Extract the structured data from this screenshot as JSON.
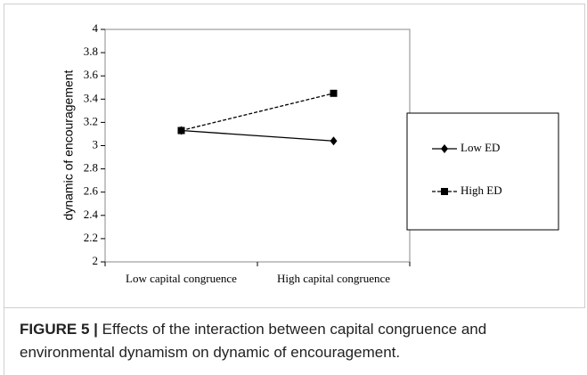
{
  "chart_data": {
    "type": "line",
    "ylabel": "dynamic of encouragement",
    "categories": [
      "Low capital congruence",
      "High capital congruence"
    ],
    "series": [
      {
        "name": "Low ED",
        "color": "#000000",
        "marker": "diamond",
        "dashed": false,
        "values": [
          3.13,
          3.04
        ]
      },
      {
        "name": "High ED",
        "color": "#000000",
        "marker": "square",
        "dashed": true,
        "values": [
          3.13,
          3.45
        ]
      }
    ],
    "ylim": [
      2,
      4
    ],
    "yticks": [
      2,
      2.2,
      2.4,
      2.6,
      2.8,
      3,
      3.2,
      3.4,
      3.6,
      3.8,
      4
    ],
    "legend": "right"
  },
  "caption": {
    "label": "FIGURE 5 |",
    "text": "Effects of the interaction between capital congruence and environmental dynamism on dynamic of encouragement."
  }
}
